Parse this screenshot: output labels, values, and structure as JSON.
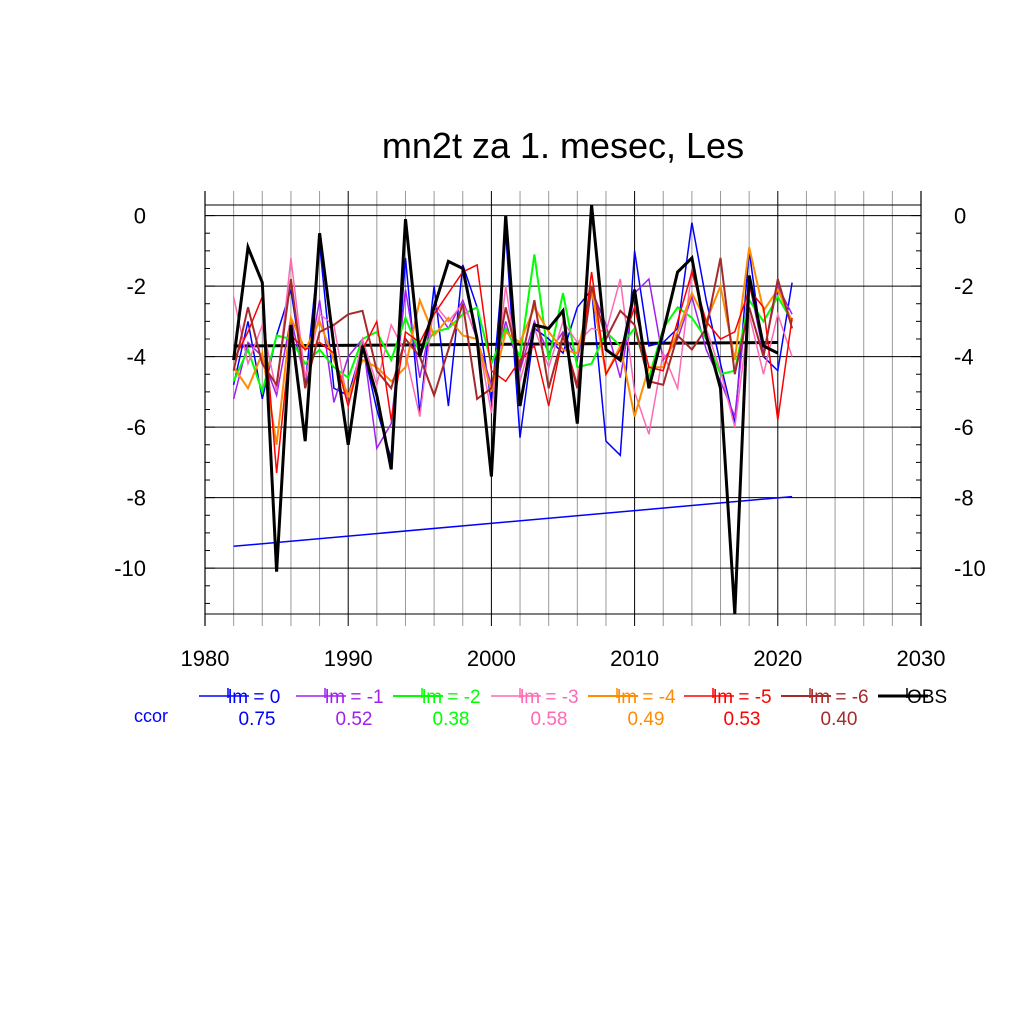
{
  "chart_data": {
    "type": "line",
    "title": "mn2t za 1. mesec, Les",
    "xlabel": "",
    "ylabel": "",
    "xlim": [
      1980,
      2030
    ],
    "ylim": [
      -11.3,
      0.3
    ],
    "x_ticks": [
      1980,
      1990,
      2000,
      2010,
      2020,
      2030
    ],
    "y_ticks": [
      0,
      -2,
      -4,
      -6,
      -8,
      -10
    ],
    "grid": true,
    "right_axis_labels": true,
    "legend_placement": "bottom",
    "correlation_label": "ccor",
    "correlation_label_color": "#0000ff",
    "x": [
      1982,
      1983,
      1984,
      1985,
      1986,
      1987,
      1988,
      1989,
      1990,
      1991,
      1992,
      1993,
      1994,
      1995,
      1996,
      1997,
      1998,
      1999,
      2000,
      2001,
      2002,
      2003,
      2004,
      2005,
      2006,
      2007,
      2008,
      2009,
      2010,
      2011,
      2012,
      2013,
      2014,
      2015,
      2016,
      2017,
      2018,
      2019,
      2020,
      2021
    ],
    "series": [
      {
        "name": "lm = 0",
        "color": "#0000ff",
        "width": 1.5,
        "ccor": "0.75",
        "values": [
          -4.8,
          -3.0,
          -5.2,
          -3.4,
          -2.1,
          -4.8,
          -0.8,
          -4.9,
          -5.1,
          -3.7,
          -5.5,
          -6.9,
          -1.2,
          -5.6,
          -2.0,
          -5.4,
          -1.4,
          -2.6,
          -5.3,
          -0.5,
          -6.3,
          -3.2,
          -3.5,
          -3.9,
          -2.6,
          -2.1,
          -6.4,
          -6.8,
          -1.0,
          -3.7,
          -3.6,
          -3.2,
          -0.2,
          -2.4,
          -4.2,
          -5.9,
          -1.0,
          -4.0,
          -4.4,
          -1.9
        ]
      },
      {
        "name": "lm = -1",
        "color": "#a020f0",
        "width": 1.5,
        "ccor": "0.52",
        "values": [
          -5.2,
          -3.6,
          -4.0,
          -5.1,
          -2.9,
          -4.7,
          -2.4,
          -5.3,
          -4.0,
          -3.5,
          -6.6,
          -5.9,
          -2.1,
          -4.6,
          -2.6,
          -3.2,
          -2.4,
          -3.5,
          -4.8,
          -3.0,
          -4.4,
          -3.0,
          -3.9,
          -3.3,
          -4.1,
          -2.1,
          -3.1,
          -4.6,
          -2.2,
          -1.8,
          -4.1,
          -3.5,
          -2.3,
          -3.8,
          -4.7,
          -5.7,
          -1.9,
          -3.9,
          -2.0,
          -2.8
        ]
      },
      {
        "name": "lm = -2",
        "color": "#00ff00",
        "width": 2,
        "ccor": "0.38",
        "values": [
          -4.7,
          -3.8,
          -5.0,
          -3.4,
          -3.5,
          -4.2,
          -3.8,
          -4.3,
          -4.6,
          -3.5,
          -3.3,
          -4.1,
          -2.9,
          -3.9,
          -3.3,
          -3.2,
          -2.8,
          -2.6,
          -4.2,
          -3.2,
          -4.0,
          -1.1,
          -4.1,
          -2.2,
          -4.3,
          -4.2,
          -3.3,
          -3.7,
          -3.2,
          -4.6,
          -3.2,
          -2.6,
          -2.9,
          -3.5,
          -4.5,
          -4.4,
          -2.4,
          -3.0,
          -2.3,
          -3.0
        ]
      },
      {
        "name": "lm = -3",
        "color": "#ff69b4",
        "width": 1.5,
        "ccor": "0.58",
        "values": [
          -2.3,
          -4.2,
          -3.1,
          -5.0,
          -1.2,
          -4.6,
          -2.8,
          -3.1,
          -5.4,
          -3.5,
          -4.8,
          -3.1,
          -3.9,
          -5.7,
          -2.5,
          -3.0,
          -2.5,
          -3.4,
          -5.6,
          -2.0,
          -4.7,
          -3.2,
          -4.3,
          -3.0,
          -3.6,
          -3.2,
          -3.3,
          -1.8,
          -5.0,
          -6.2,
          -3.9,
          -4.9,
          -1.5,
          -3.2,
          -4.4,
          -6.0,
          -2.8,
          -4.5,
          -2.8,
          -4.0
        ]
      },
      {
        "name": "lm = -4",
        "color": "#ff8c00",
        "width": 2,
        "ccor": "0.49",
        "values": [
          -4.3,
          -4.9,
          -3.9,
          -6.5,
          -2.9,
          -3.8,
          -3.0,
          -4.1,
          -5.1,
          -4.1,
          -4.3,
          -4.7,
          -4.3,
          -2.4,
          -3.4,
          -2.9,
          -3.4,
          -3.5,
          -5.0,
          -3.3,
          -3.6,
          -2.6,
          -3.3,
          -3.8,
          -3.9,
          -2.1,
          -4.5,
          -3.7,
          -5.7,
          -4.3,
          -4.3,
          -3.3,
          -2.2,
          -3.0,
          -2.0,
          -4.1,
          -0.9,
          -2.7,
          -2.1,
          -3.0
        ]
      },
      {
        "name": "lm = -5",
        "color": "#ff0000",
        "width": 1.5,
        "ccor": "0.53",
        "values": [
          -4.1,
          -3.3,
          -2.3,
          -7.3,
          -3.4,
          -3.8,
          -3.6,
          -3.9,
          -5.4,
          -3.8,
          -3.0,
          -5.8,
          -3.3,
          -3.6,
          -2.8,
          -2.2,
          -1.6,
          -1.4,
          -4.4,
          -4.7,
          -4.1,
          -3.7,
          -5.4,
          -3.4,
          -4.8,
          -1.6,
          -4.5,
          -3.8,
          -2.6,
          -4.3,
          -4.4,
          -3.0,
          -1.6,
          -3.0,
          -3.5,
          -3.3,
          -2.1,
          -2.6,
          -5.8,
          -2.9
        ]
      },
      {
        "name": "lm = -6",
        "color": "#a52a2a",
        "width": 2,
        "ccor": "0.40",
        "values": [
          -4.4,
          -2.6,
          -4.2,
          -4.8,
          -1.8,
          -4.9,
          -3.3,
          -3.1,
          -2.8,
          -2.7,
          -4.4,
          -4.9,
          -3.5,
          -4.0,
          -5.1,
          -3.8,
          -2.5,
          -5.2,
          -4.9,
          -2.6,
          -4.3,
          -2.4,
          -4.9,
          -3.4,
          -4.9,
          -2.0,
          -3.5,
          -2.7,
          -3.1,
          -4.7,
          -4.8,
          -3.4,
          -3.8,
          -3.2,
          -1.2,
          -4.5,
          -2.6,
          -4.0,
          -1.8,
          -3.2
        ]
      },
      {
        "name": "OBS",
        "color": "#000000",
        "width": 3,
        "ccor": "",
        "values": [
          -4.1,
          -0.9,
          -1.9,
          -10.1,
          -3.1,
          -6.4,
          -0.5,
          -3.7,
          -6.5,
          -3.7,
          -5.1,
          -7.2,
          -0.1,
          -4.0,
          -2.6,
          -1.3,
          -1.5,
          -3.5,
          -7.4,
          0.0,
          -5.4,
          -3.1,
          -3.2,
          -2.7,
          -5.9,
          0.3,
          -3.8,
          -4.1,
          -2.1,
          -4.9,
          -3.3,
          -1.6,
          -1.2,
          -3.4,
          -4.9,
          -11.3,
          -1.7,
          -3.7,
          -3.9,
          null
        ]
      }
    ],
    "trend_lines": [
      {
        "color": "#0000ff",
        "width": 1.5,
        "x": [
          1982,
          2021
        ],
        "y": [
          -9.38,
          -7.97
        ]
      },
      {
        "color": "#000000",
        "width": 3,
        "x": [
          1982,
          2020
        ],
        "y": [
          -3.7,
          -3.6
        ]
      }
    ]
  }
}
